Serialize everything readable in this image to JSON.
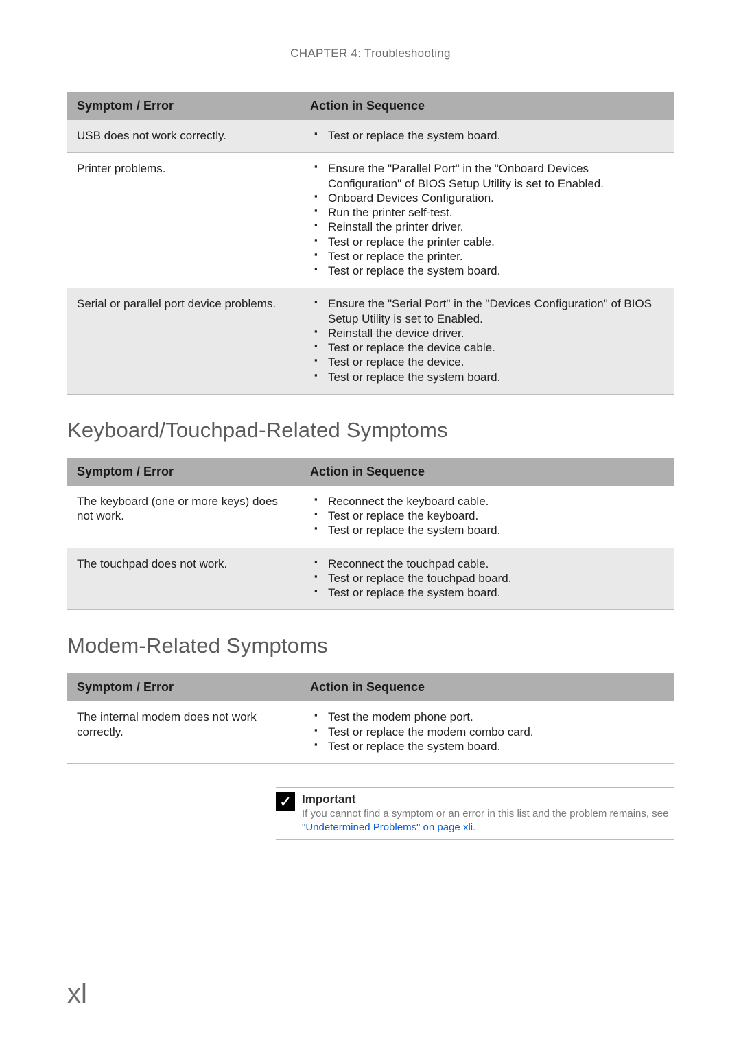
{
  "chapter_title": "CHAPTER 4: Troubleshooting",
  "page_number": "xl",
  "col_symptom": "Symptom / Error",
  "col_action": "Action in Sequence",
  "table1": {
    "rows": [
      {
        "symptom": "USB does not work correctly.",
        "actions": [
          "Test or replace the system board."
        ],
        "alt": true
      },
      {
        "symptom": "Printer problems.",
        "actions": [
          "Ensure the \"Parallel Port\" in the \"Onboard Devices Configuration\" of BIOS Setup Utility is set to Enabled.",
          "Onboard Devices Configuration.",
          "Run the printer self-test.",
          "Reinstall the printer driver.",
          "Test or replace the printer cable.",
          "Test or replace the printer.",
          "Test or replace the system board."
        ],
        "alt": false
      },
      {
        "symptom": "Serial or parallel port device problems.",
        "actions": [
          "Ensure the \"Serial Port\" in the \"Devices Configuration\" of BIOS Setup Utility is set to Enabled.",
          "Reinstall the device driver.",
          "Test or replace the device cable.",
          "Test or replace the device.",
          "Test or replace the system board."
        ],
        "alt": true
      }
    ]
  },
  "section2_title": "Keyboard/Touchpad-Related Symptoms",
  "table2": {
    "rows": [
      {
        "symptom": "The keyboard (one or more keys) does not work.",
        "actions": [
          "Reconnect the keyboard cable.",
          "Test or replace the keyboard.",
          "Test or replace the system board."
        ],
        "alt": false
      },
      {
        "symptom": "The touchpad does not work.",
        "actions": [
          "Reconnect the touchpad cable.",
          "Test or replace the touchpad board.",
          "Test or replace the system board."
        ],
        "alt": true
      }
    ]
  },
  "section3_title": "Modem-Related Symptoms",
  "table3": {
    "rows": [
      {
        "symptom": "The internal modem does not work correctly.",
        "actions": [
          "Test the modem phone port.",
          "Test or replace the modem combo card.",
          "Test or replace the system board."
        ],
        "alt": false
      }
    ]
  },
  "note": {
    "label": "Important",
    "body_pre": "If you cannot find a symptom or an error in this list and the problem remains, see ",
    "link_text": "\"Undetermined Problems\" on page xli",
    "body_post": "."
  },
  "colors": {
    "header_bg": "#afafaf",
    "alt_row_bg": "#e9e9e9",
    "border": "#bdbdbd",
    "text": "#222222",
    "muted": "#6a6a6a",
    "link": "#0b5fd6"
  }
}
